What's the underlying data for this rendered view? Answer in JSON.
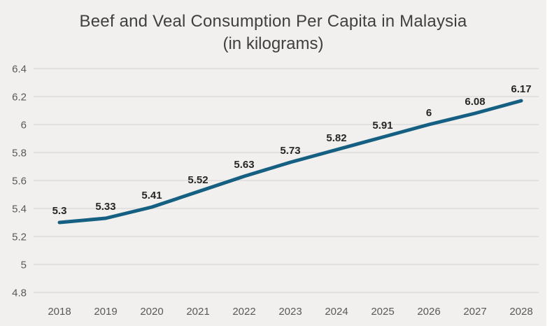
{
  "page": {
    "background": "#ffffff",
    "canvas_background": "#f1f0ee"
  },
  "chart_data": {
    "type": "line",
    "title": "Beef and Veal Consumption Per Capita in Malaysia",
    "subtitle": "(in kilograms)",
    "categories": [
      "2018",
      "2019",
      "2020",
      "2021",
      "2022",
      "2023",
      "2024",
      "2025",
      "2026",
      "2027",
      "2028"
    ],
    "values": [
      5.3,
      5.33,
      5.41,
      5.52,
      5.63,
      5.73,
      5.82,
      5.91,
      6,
      6.08,
      6.17
    ],
    "value_labels": [
      "5.3",
      "5.33",
      "5.41",
      "5.52",
      "5.63",
      "5.73",
      "5.82",
      "5.91",
      "6",
      "6.08",
      "6.17"
    ],
    "xlabel": "",
    "ylabel": "",
    "ylim": [
      4.8,
      6.4
    ],
    "ytick_step": 0.2,
    "ytick_labels": [
      "4.8",
      "5",
      "5.2",
      "5.4",
      "5.6",
      "5.8",
      "6",
      "6.2",
      "6.4"
    ],
    "grid": "horizontal",
    "legend": "none",
    "colors": {
      "line": "#156082",
      "grid": "#dedcda",
      "title_text": "#404040",
      "tick_text": "#595959",
      "data_label_text": "#262626"
    }
  }
}
